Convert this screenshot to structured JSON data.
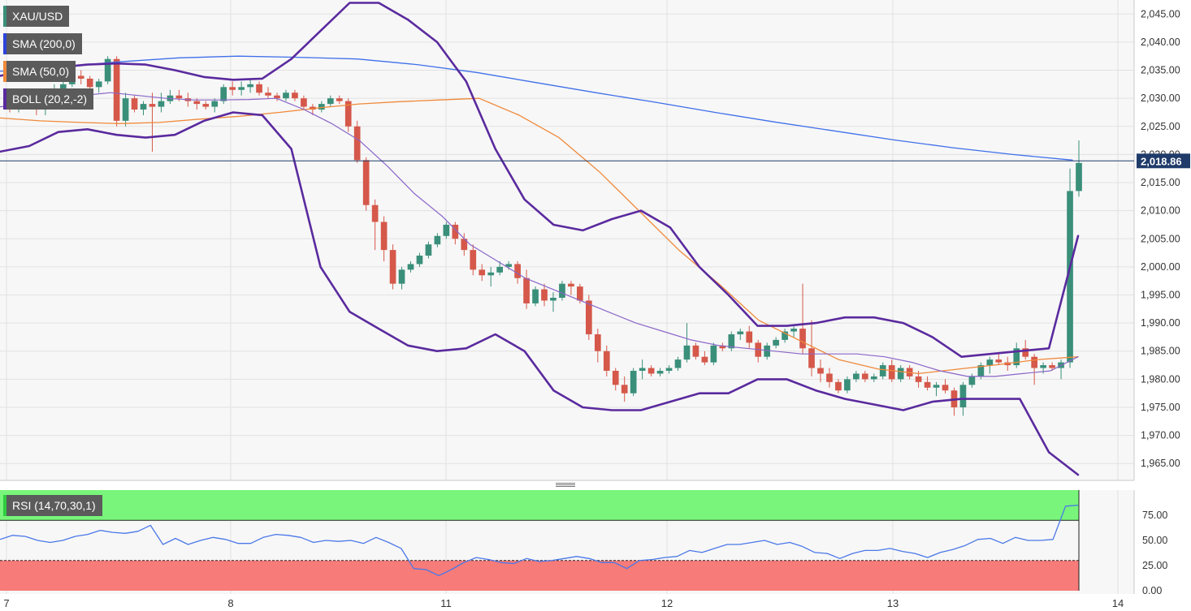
{
  "legend": {
    "symbol": "XAU/USD",
    "sma200": "SMA (200,0)",
    "sma50": "SMA (50,0)",
    "boll": "BOLL (20,2,-2)",
    "rsi": "RSI (14,70,30,1)"
  },
  "colors": {
    "up": "#3a8f7a",
    "down": "#d5584a",
    "sma200": "#3f6fea",
    "sma50": "#f0893a",
    "boll_band": "#5a2a9e",
    "boll_mid": "#8a66c9",
    "rsi_line": "#4a78e8",
    "rsi_overbought": "#78f57a",
    "rsi_oversold": "#f77b78",
    "price_tag_bg": "#1f3b6a",
    "price_line": "#1f3b6a",
    "legend_bg": "#5b5b5b",
    "swatch_xau": "#3a8f7a",
    "swatch_sma200": "#2d43d8",
    "swatch_sma50": "#f0893a",
    "swatch_boll": "#5a2a9e",
    "swatch_rsi": "#2ecc40"
  },
  "chart_data": [
    {
      "type": "candlestick",
      "symbol": "XAU/USD",
      "x_tick_labels": [
        "7",
        "8",
        "11",
        "12",
        "13",
        "14"
      ],
      "y_ticks": [
        1965,
        1970,
        1975,
        1980,
        1985,
        1990,
        1995,
        2000,
        2005,
        2010,
        2015,
        2020,
        2025,
        2030,
        2035,
        2040,
        2045
      ],
      "y_tick_labels": [
        "1,965.00",
        "1,970.00",
        "1,975.00",
        "1,980.00",
        "1,985.00",
        "1,990.00",
        "1,995.00",
        "2,000.00",
        "2,005.00",
        "2,010.00",
        "2,015.00",
        "2,020.00",
        "2,025.00",
        "2,030.00",
        "2,035.00",
        "2,040.00",
        "2,045.00"
      ],
      "ylim": [
        1962,
        2047.5
      ],
      "last_price": 2018.86,
      "last_price_label": "2,018.86",
      "candles": [
        [
          2029.5,
          2030.5,
          2027.5,
          2028.5
        ],
        [
          2028.5,
          2031,
          2027.5,
          2030
        ],
        [
          2030,
          2031.5,
          2028,
          2028.5
        ],
        [
          2028.5,
          2029.5,
          2027,
          2028
        ],
        [
          2028,
          2030.5,
          2027,
          2030
        ],
        [
          2030,
          2032.5,
          2029.5,
          2031.5
        ],
        [
          2031.5,
          2033.5,
          2030.5,
          2032.5
        ],
        [
          2032.5,
          2034.5,
          2032,
          2034
        ],
        [
          2034,
          2035,
          2032.5,
          2033.5
        ],
        [
          2033.5,
          2034,
          2031,
          2032
        ],
        [
          2032,
          2033.5,
          2031,
          2033
        ],
        [
          2033,
          2037.5,
          2032.5,
          2037
        ],
        [
          2037,
          2037.5,
          2025,
          2026
        ],
        [
          2026,
          2031,
          2025,
          2030
        ],
        [
          2030,
          2030.5,
          2027.5,
          2028
        ],
        [
          2028,
          2029.5,
          2027,
          2029
        ],
        [
          2029,
          2031,
          2020.5,
          2028.5
        ],
        [
          2028.5,
          2031,
          2027.5,
          2029.5
        ],
        [
          2029.5,
          2031.5,
          2029,
          2030.5
        ],
        [
          2030.5,
          2031.5,
          2029.5,
          2030
        ],
        [
          2030,
          2031,
          2028.5,
          2029.5
        ],
        [
          2029.5,
          2030,
          2028,
          2029
        ],
        [
          2029,
          2029.5,
          2028,
          2028.5
        ],
        [
          2028.5,
          2030,
          2027.5,
          2029.5
        ],
        [
          2029.5,
          2032.5,
          2029,
          2032
        ],
        [
          2032,
          2033,
          2030.5,
          2031.5
        ],
        [
          2031.5,
          2033,
          2030.5,
          2032
        ],
        [
          2032,
          2033.5,
          2031,
          2032.5
        ],
        [
          2032.5,
          2033,
          2030.5,
          2031
        ],
        [
          2031,
          2032,
          2030,
          2030.5
        ],
        [
          2030.5,
          2031,
          2029.5,
          2030
        ],
        [
          2030,
          2031.5,
          2029.5,
          2031
        ],
        [
          2031,
          2031.5,
          2029.5,
          2030
        ],
        [
          2030,
          2030.5,
          2028,
          2028.5
        ],
        [
          2028.5,
          2029,
          2027,
          2028
        ],
        [
          2028,
          2029.5,
          2027.5,
          2029
        ],
        [
          2029,
          2030.5,
          2028.5,
          2030
        ],
        [
          2030,
          2030.5,
          2029,
          2029.5
        ],
        [
          2029.5,
          2030,
          2024,
          2025
        ],
        [
          2025,
          2026,
          2018.5,
          2019
        ],
        [
          2019,
          2019.5,
          2010,
          2011
        ],
        [
          2011,
          2012,
          2003,
          2008
        ],
        [
          2008,
          2009,
          2001,
          2003
        ],
        [
          2003,
          2004,
          1996,
          1997
        ],
        [
          1997,
          2000,
          1996,
          1999.5
        ],
        [
          1999.5,
          2001,
          1999,
          2000.5
        ],
        [
          2000.5,
          2002.5,
          2000,
          2002
        ],
        [
          2002,
          2004.5,
          2001.5,
          2004
        ],
        [
          2004,
          2006,
          2003.5,
          2005.5
        ],
        [
          2005.5,
          2008,
          2005,
          2007.5
        ],
        [
          2007.5,
          2008,
          2004,
          2005
        ],
        [
          2005,
          2006,
          2002,
          2003
        ],
        [
          2003,
          2004,
          1998.5,
          1999.5
        ],
        [
          1999.5,
          2000.5,
          1997.5,
          1998.5
        ],
        [
          1998.5,
          2000,
          1996.5,
          1999
        ],
        [
          1999,
          2001,
          1998.5,
          2000
        ],
        [
          2000,
          2001,
          1999.5,
          2000.5
        ],
        [
          2000.5,
          2001,
          1997,
          1998
        ],
        [
          1998,
          1999.5,
          1992.5,
          1993.5
        ],
        [
          1993.5,
          1996.5,
          1993,
          1996
        ],
        [
          1996,
          1997,
          1993,
          1994
        ],
        [
          1994,
          1995.5,
          1992,
          1994.5
        ],
        [
          1994.5,
          1997.5,
          1994,
          1997
        ],
        [
          1997,
          1997.5,
          1995,
          1996.5
        ],
        [
          1996.5,
          1997,
          1993.5,
          1994
        ],
        [
          1994,
          1995,
          1987,
          1988
        ],
        [
          1988,
          1989,
          1983,
          1985
        ],
        [
          1985,
          1986,
          1980.5,
          1981.5
        ],
        [
          1981.5,
          1982,
          1978,
          1979
        ],
        [
          1979,
          1980.5,
          1976,
          1977.5
        ],
        [
          1977.5,
          1982,
          1977,
          1981.5
        ],
        [
          1981.5,
          1983.5,
          1980,
          1982
        ],
        [
          1982,
          1982.5,
          1980.5,
          1981
        ],
        [
          1981,
          1982,
          1980.5,
          1981.5
        ],
        [
          1981.5,
          1982.5,
          1981,
          1982
        ],
        [
          1982,
          1984,
          1981.5,
          1983.5
        ],
        [
          1983.5,
          1990,
          1983,
          1986
        ],
        [
          1986,
          1986.5,
          1983.5,
          1984
        ],
        [
          1984,
          1985,
          1982.5,
          1983
        ],
        [
          1983,
          1986.5,
          1982.5,
          1986
        ],
        [
          1986,
          1986.5,
          1985,
          1985.5
        ],
        [
          1985.5,
          1988.5,
          1985,
          1988
        ],
        [
          1988,
          1989,
          1987,
          1988.5
        ],
        [
          1988.5,
          1989.5,
          1985.5,
          1986.5
        ],
        [
          1986.5,
          1987,
          1983,
          1984
        ],
        [
          1984,
          1986.5,
          1983.5,
          1986
        ],
        [
          1986,
          1987.5,
          1985.5,
          1987
        ],
        [
          1987,
          1989,
          1986.5,
          1988.5
        ],
        [
          1988.5,
          1989.5,
          1987.5,
          1989
        ],
        [
          1989,
          1997,
          1984.5,
          1985.5
        ],
        [
          1985.5,
          1990.5,
          1980.5,
          1982
        ],
        [
          1982,
          1983.5,
          1979.5,
          1981
        ],
        [
          1981,
          1982,
          1978.5,
          1979.5
        ],
        [
          1979.5,
          1980,
          1977.5,
          1978
        ],
        [
          1978,
          1980.5,
          1977.5,
          1980
        ],
        [
          1980,
          1981.5,
          1979.5,
          1981
        ],
        [
          1981,
          1981.5,
          1979.5,
          1980
        ],
        [
          1980,
          1981,
          1979.5,
          1980.5
        ],
        [
          1980.5,
          1983,
          1980,
          1982.5
        ],
        [
          1982.5,
          1983.5,
          1979.5,
          1980
        ],
        [
          1980,
          1982.5,
          1979.5,
          1982
        ],
        [
          1982,
          1982.5,
          1980,
          1980.5
        ],
        [
          1980.5,
          1981.5,
          1978.5,
          1979.5
        ],
        [
          1979.5,
          1980.5,
          1978,
          1978.5
        ],
        [
          1978.5,
          1979.5,
          1977,
          1979
        ],
        [
          1979,
          1980,
          1977.5,
          1978
        ],
        [
          1978,
          1978.5,
          1973.5,
          1975
        ],
        [
          1975,
          1979.5,
          1973.5,
          1979
        ],
        [
          1979,
          1981,
          1978.5,
          1980.5
        ],
        [
          1980.5,
          1983,
          1980,
          1982.5
        ],
        [
          1982.5,
          1984,
          1981,
          1983.5
        ],
        [
          1983.5,
          1984.5,
          1982.5,
          1983
        ],
        [
          1983,
          1984,
          1981.5,
          1982.5
        ],
        [
          1982.5,
          1986.5,
          1982,
          1985.5
        ],
        [
          1985.5,
          1987,
          1983.5,
          1984
        ],
        [
          1984,
          1984.5,
          1979,
          1982
        ],
        [
          1982,
          1983,
          1981,
          1982.5
        ],
        [
          1982.5,
          1983,
          1981.5,
          1982
        ],
        [
          1982,
          1983.5,
          1980,
          1983
        ],
        [
          1983,
          2017.5,
          1982,
          2013.5
        ],
        [
          2013.5,
          2022.5,
          2012.5,
          2018.5
        ]
      ],
      "sma200": [
        2034.8,
        2035.6,
        2036.5,
        2037.2,
        2037.5,
        2037.3,
        2037,
        2036,
        2034.6,
        2032.8,
        2031,
        2029.3,
        2027.5,
        2025.8,
        2024.2,
        2022.6,
        2021.2,
        2020,
        2019
      ],
      "sma50": [
        2026.5,
        2026,
        2025.7,
        2025.5,
        2025.7,
        2026.3,
        2026.8,
        2027.5,
        2028.3,
        2029,
        2029.4,
        2029.7,
        2030,
        2027,
        2023,
        2017,
        2010,
        2003,
        1997,
        1990.5,
        1987,
        1983.5,
        1981.8,
        1981,
        1981.8,
        1982.6,
        1983.5,
        1984
      ],
      "boll_upper": [
        2034,
        2035,
        2035.5,
        2036,
        2036.2,
        2036,
        2035,
        2033.8,
        2033.3,
        2033.5,
        2037,
        2042,
        2047,
        2047,
        2044,
        2040,
        2033,
        2021,
        2012,
        2007.5,
        2006.5,
        2008.5,
        2010,
        2007,
        2000,
        1995,
        1989.5,
        1989.5,
        1990,
        1991,
        1991,
        1990,
        1987.5,
        1984,
        1984.5,
        1985,
        1985.5,
        2005.5
      ],
      "boll_mid": [
        2028.5,
        2029,
        2030,
        2030.5,
        2031,
        2030.5,
        2030,
        2029.7,
        2029.7,
        2029.8,
        2030,
        2028,
        2025.5,
        2022.5,
        2018,
        2013,
        2009,
        2004,
        2001,
        1998,
        1996,
        1994,
        1992,
        1990,
        1988.5,
        1987,
        1986,
        1985.5,
        1985,
        1984.5,
        1984.5,
        1984.5,
        1984,
        1983,
        1981.5,
        1980.5,
        1980.5,
        1981,
        1981.5,
        1984
      ],
      "boll_lower": [
        2020.5,
        2021.5,
        2024,
        2024.5,
        2023.5,
        2023,
        2023.5,
        2026,
        2027.5,
        2027,
        2021,
        2000,
        1992,
        1989,
        1986,
        1985,
        1985.5,
        1988,
        1985,
        1978,
        1975,
        1974.5,
        1974.5,
        1976,
        1977.5,
        1977.5,
        1980,
        1980,
        1978,
        1976.5,
        1975.5,
        1974.5,
        1976,
        1976.5,
        1976.5,
        1976.5,
        1967,
        1963
      ]
    },
    {
      "type": "line",
      "name": "RSI (14,70,30,1)",
      "y_ticks": [
        0,
        25,
        50,
        75
      ],
      "y_tick_labels": [
        "0.00",
        "25.00",
        "50.00",
        "75.00"
      ],
      "ylim": [
        0,
        100
      ],
      "overbought": 70,
      "oversold": 30,
      "values": [
        51,
        55,
        54,
        50,
        48,
        50,
        54,
        56,
        60,
        58,
        57,
        59,
        65,
        46,
        52,
        46,
        50,
        53,
        51,
        47,
        47,
        53,
        56,
        55,
        53,
        48,
        50,
        49,
        50,
        47,
        53,
        48,
        42,
        22,
        21,
        15,
        21,
        28,
        33,
        31,
        28,
        27,
        32,
        29,
        30,
        32,
        34,
        32,
        28,
        28,
        22,
        30,
        31,
        33,
        34,
        40,
        38,
        42,
        46,
        46,
        48,
        50,
        46,
        48,
        44,
        38,
        37,
        32,
        37,
        40,
        40,
        42,
        39,
        37,
        33,
        38,
        41,
        45,
        51,
        52,
        47,
        53,
        50,
        50,
        51,
        84,
        85
      ]
    }
  ]
}
